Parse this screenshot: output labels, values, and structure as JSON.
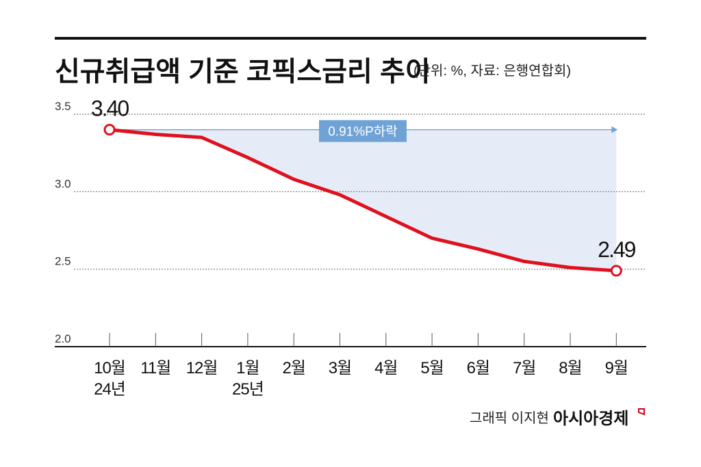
{
  "chart_data": {
    "type": "line",
    "title": "신규취급액 기준 코픽스금리 추이",
    "subtitle": "(단위: %, 자료: 은행연합회)",
    "categories": [
      "10월",
      "11월",
      "12월",
      "1월",
      "2월",
      "3월",
      "4월",
      "5월",
      "6월",
      "7월",
      "8월",
      "9월"
    ],
    "category_sublabels": [
      "24년",
      "",
      "",
      "25년",
      "",
      "",
      "",
      "",
      "",
      "",
      "",
      ""
    ],
    "series": [
      {
        "name": "코픽스금리",
        "values": [
          3.4,
          3.37,
          3.35,
          3.22,
          3.08,
          2.98,
          2.84,
          2.7,
          2.63,
          2.55,
          2.51,
          2.49
        ]
      }
    ],
    "data_labels": [
      {
        "index": 0,
        "text": "3.40"
      },
      {
        "index": 11,
        "text": "2.49"
      }
    ],
    "annotation": "0.91%P하락",
    "yticks": [
      "3.5",
      "3.0",
      "2.5",
      "2.0"
    ],
    "ylim": [
      2.0,
      3.5
    ],
    "grid": true,
    "xlabel": "",
    "ylabel": "",
    "colors": {
      "line": "#e0101e",
      "fill": "#e6ecf7",
      "annotation": "#6fa3d6"
    }
  },
  "footer": {
    "credit": "그래픽 이지현",
    "brand": "아시아경제"
  }
}
